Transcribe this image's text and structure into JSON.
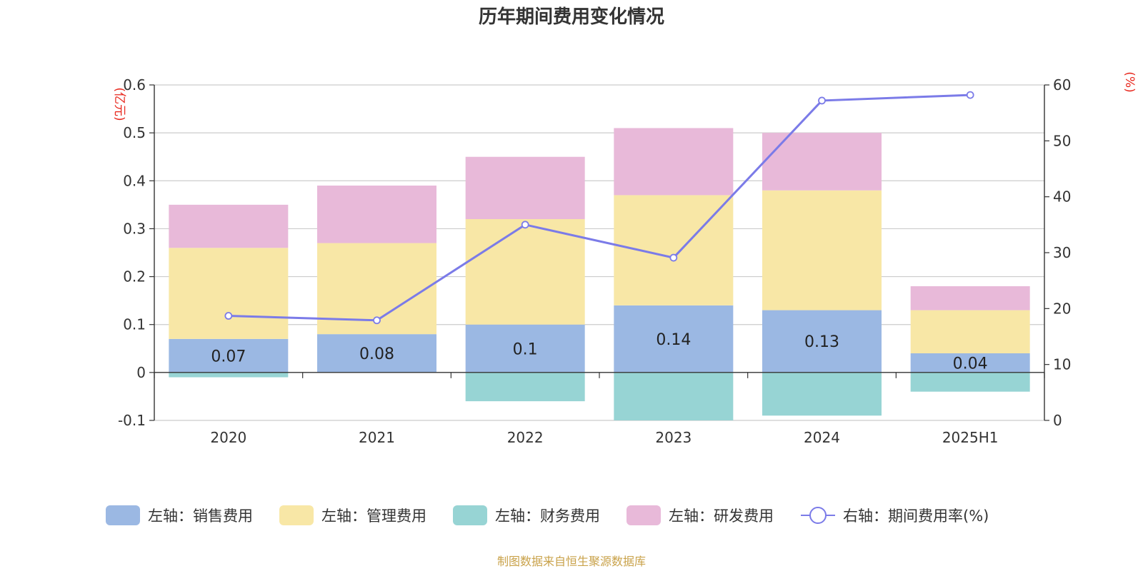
{
  "chart_data": {
    "type": "bar",
    "title": "历年期间费用变化情况",
    "categories": [
      "2020",
      "2021",
      "2022",
      "2023",
      "2024",
      "2025H1"
    ],
    "left_axis": {
      "unit": "(亿元)",
      "min": -0.1,
      "max": 0.6,
      "ticks": [
        "-0.1",
        "0",
        "0.1",
        "0.2",
        "0.3",
        "0.4",
        "0.5",
        "0.6"
      ]
    },
    "right_axis": {
      "unit": "(%)",
      "min": 0,
      "max": 60,
      "ticks": [
        "0",
        "10",
        "20",
        "30",
        "40",
        "50",
        "60"
      ]
    },
    "grid": true,
    "legend_position": "bottom",
    "series": [
      {
        "name": "左轴：销售费用",
        "type": "bar",
        "axis": "left",
        "color": "#9bb8e3",
        "values": [
          0.07,
          0.08,
          0.1,
          0.14,
          0.13,
          0.04
        ],
        "labels": [
          "0.07",
          "0.08",
          "0.1",
          "0.14",
          "0.13",
          "0.04"
        ]
      },
      {
        "name": "左轴：管理费用",
        "type": "bar",
        "axis": "left",
        "color": "#f8e7a6",
        "values": [
          0.19,
          0.19,
          0.22,
          0.23,
          0.25,
          0.09
        ]
      },
      {
        "name": "左轴：财务费用",
        "type": "bar",
        "axis": "left",
        "color": "#97d4d4",
        "values": [
          -0.01,
          0.0,
          -0.06,
          -0.1,
          -0.09,
          -0.04
        ]
      },
      {
        "name": "左轴：研发费用",
        "type": "bar",
        "axis": "left",
        "color": "#e8b9d9",
        "values": [
          0.09,
          0.12,
          0.13,
          0.14,
          0.12,
          0.05
        ]
      },
      {
        "name": "右轴：期间费用率(%)",
        "type": "line",
        "axis": "right",
        "color": "#7b7be8",
        "values": [
          18.7,
          17.9,
          35.0,
          29.1,
          57.2,
          58.2
        ]
      }
    ]
  },
  "footer": {
    "source": "制图数据来自恒生聚源数据库"
  }
}
